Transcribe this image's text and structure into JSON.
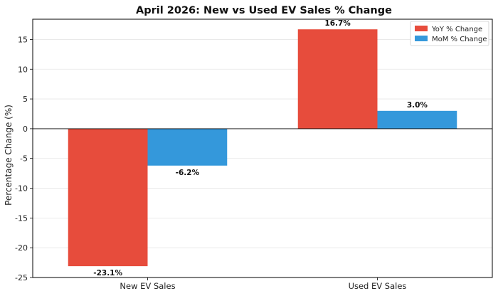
{
  "chart_data": {
    "type": "bar",
    "title": "April 2026: New vs Used EV Sales % Change",
    "xlabel": "",
    "ylabel": "Percentage Change (%)",
    "categories": [
      "New EV Sales",
      "Used EV Sales"
    ],
    "series": [
      {
        "name": "YoY % Change",
        "values": [
          -23.1,
          16.7
        ],
        "labels": [
          "-23.1%",
          "16.7%"
        ],
        "color": "#e74c3c"
      },
      {
        "name": "MoM % Change",
        "values": [
          -6.2,
          3.0
        ],
        "labels": [
          "-6.2%",
          "3.0%"
        ],
        "color": "#3498db"
      }
    ],
    "ylim": [
      -25,
      18.4
    ],
    "yticks": [
      -25,
      -20,
      -15,
      -10,
      -5,
      0,
      5,
      10,
      15
    ],
    "grid": "horizontal",
    "legend_position": "top-right"
  }
}
